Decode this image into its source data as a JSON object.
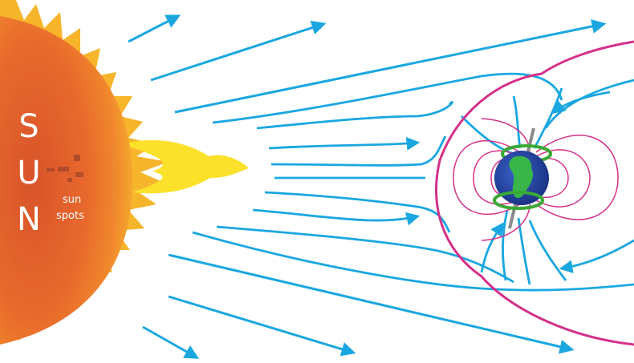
{
  "sun": {
    "letters": [
      "S",
      "U",
      "N"
    ],
    "sunspots_label": [
      "sun",
      "spots"
    ]
  },
  "colors": {
    "sun_core": "#e2612b",
    "sun_glow": "#f59a2a",
    "flare_yellow": "#fbe12a",
    "solar_wind": "#1aa7e0",
    "magnetopause": "#d4318a",
    "inner_field": "#d4318a",
    "earth_ocean": "#2445a8",
    "earth_land": "#39b54a",
    "radiation_belt": "#3aa935",
    "axis": "#8a8a8a"
  }
}
